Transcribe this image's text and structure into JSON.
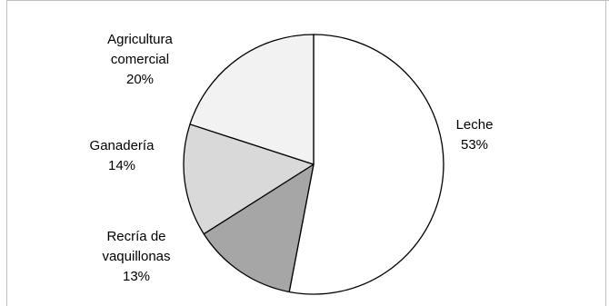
{
  "chart_data": {
    "type": "pie",
    "categories": [
      "Leche",
      "Recría de vaquillonas",
      "Ganadería",
      "Agricultura comercial"
    ],
    "values": [
      53,
      13,
      14,
      20
    ],
    "labels": [
      [
        "Leche",
        "53%"
      ],
      [
        "Recría de",
        "vaquillonas",
        "13%"
      ],
      [
        "Ganadería",
        "14%"
      ],
      [
        "Agricultura",
        "comercial",
        "20%"
      ]
    ],
    "colors": [
      "#ffffff",
      "#a6a6a6",
      "#d9d9d9",
      "#f2f2f2"
    ],
    "border_color": "#000000",
    "frame_color": "#bfbfbf",
    "start_angle_deg": 0,
    "direction": "clockwise",
    "legend": "none"
  }
}
